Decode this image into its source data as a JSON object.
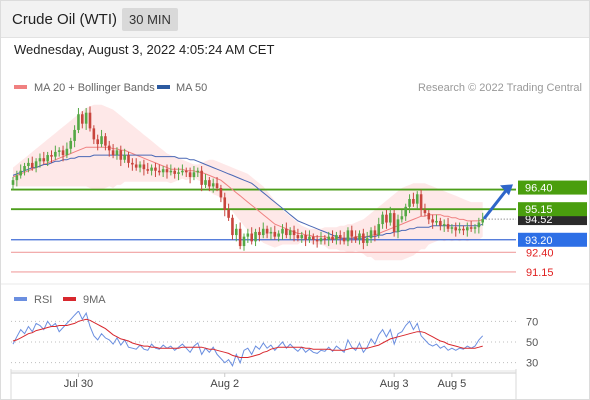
{
  "header": {
    "title": "Crude Oil (WTI)",
    "timeframe_label": "30 MIN",
    "datetime": "Wednesday, August 3, 2022 4:05:24 AM CET"
  },
  "colors": {
    "candle_up": "#55a845",
    "candle_down": "#c8453d",
    "ma20": "#f08080",
    "bollinger_fill": "#fde0e0",
    "ma50": "#4a68b5",
    "resistance": "#4d9e1b",
    "support_blue": "#3f6bd6",
    "support_red": "#f0a0a0",
    "rsi": "#6b8fe0",
    "rsi_ma": "#d8282e",
    "arrow": "#2f66c9"
  },
  "chart_data": [
    {
      "type": "candlestick",
      "title": "",
      "legend": [
        {
          "name": "MA 20 + Bollinger Bands",
          "color": "#f08080"
        },
        {
          "name": "MA 50",
          "color": "#2c5aa0"
        }
      ],
      "copyright": "Research © 2022 Trading Central",
      "ylim": [
        90.7,
        102.3
      ],
      "x_ticks": [
        {
          "label": "Jul 30",
          "index": 17
        },
        {
          "label": "Aug 2",
          "index": 55
        },
        {
          "label": "Aug 3",
          "index": 99
        },
        {
          "label": "Aug 5",
          "index": 114
        }
      ],
      "last_price": 94.52,
      "levels": [
        {
          "value": 96.4,
          "label": "96.40",
          "kind": "resistance",
          "style": "badge-green"
        },
        {
          "value": 95.15,
          "label": "95.15",
          "kind": "resistance",
          "style": "badge-green"
        },
        {
          "value": 93.2,
          "label": "93.20",
          "kind": "support",
          "style": "badge-blue"
        },
        {
          "value": 92.4,
          "label": "92.40",
          "kind": "support",
          "style": "text-red"
        },
        {
          "value": 91.15,
          "label": "91.15",
          "kind": "support",
          "style": "text-red"
        }
      ],
      "forecast_arrow": {
        "from": 94.6,
        "to": 96.35
      },
      "close": [
        97.0,
        97.3,
        97.6,
        97.9,
        98.1,
        97.8,
        98.2,
        98.4,
        98.2,
        98.6,
        98.5,
        98.8,
        98.9,
        98.6,
        99.0,
        99.5,
        100.2,
        101.2,
        100.6,
        101.3,
        100.3,
        99.6,
        99.3,
        99.8,
        99.2,
        98.9,
        98.6,
        98.9,
        98.3,
        98.6,
        98.1,
        98.0,
        97.8,
        98.0,
        97.7,
        97.6,
        97.8,
        97.6,
        97.5,
        97.7,
        97.5,
        97.6,
        97.4,
        97.5,
        97.6,
        97.5,
        97.2,
        97.5,
        97.6,
        96.7,
        97.0,
        96.6,
        96.8,
        96.5,
        95.9,
        95.1,
        94.6,
        93.5,
        93.9,
        92.8,
        93.4,
        93.6,
        93.1,
        93.7,
        93.5,
        93.9,
        93.6,
        93.7,
        93.4,
        93.6,
        93.9,
        93.5,
        93.8,
        93.5,
        93.3,
        93.5,
        93.2,
        93.4,
        93.2,
        93.1,
        93.3,
        93.2,
        93.4,
        93.2,
        93.5,
        93.3,
        93.1,
        93.8,
        93.4,
        93.2,
        93.6,
        93.0,
        93.3,
        93.8,
        93.5,
        94.2,
        94.8,
        94.3,
        94.9,
        93.7,
        94.5,
        94.7,
        95.3,
        95.8,
        95.5,
        96.1,
        95.1,
        94.9,
        94.5,
        94.3,
        94.4,
        94.1,
        94.2,
        93.9,
        94.0,
        93.8,
        93.9,
        93.8,
        94.0,
        93.9,
        94.0,
        94.3,
        94.52
      ],
      "ma20": [
        97.2,
        97.3,
        97.4,
        97.5,
        97.6,
        97.7,
        97.8,
        97.9,
        98.0,
        98.1,
        98.2,
        98.3,
        98.4,
        98.5,
        98.6,
        98.7,
        98.8,
        98.9,
        99.0,
        99.1,
        99.1,
        99.1,
        99.1,
        99.1,
        99.1,
        99.1,
        99.0,
        99.0,
        98.9,
        98.9,
        98.8,
        98.7,
        98.6,
        98.5,
        98.4,
        98.3,
        98.2,
        98.1,
        98.0,
        97.9,
        97.8,
        97.7,
        97.7,
        97.7,
        97.7,
        97.6,
        97.6,
        97.6,
        97.5,
        97.5,
        97.4,
        97.3,
        97.2,
        97.1,
        97.0,
        96.8,
        96.6,
        96.4,
        96.2,
        96.0,
        95.8,
        95.6,
        95.4,
        95.2,
        95.0,
        94.8,
        94.6,
        94.4,
        94.2,
        94.1,
        94.0,
        93.9,
        93.8,
        93.7,
        93.6,
        93.6,
        93.5,
        93.5,
        93.4,
        93.4,
        93.4,
        93.4,
        93.3,
        93.3,
        93.3,
        93.3,
        93.3,
        93.3,
        93.3,
        93.4,
        93.4,
        93.4,
        93.4,
        93.5,
        93.5,
        93.6,
        93.7,
        93.8,
        93.9,
        94.0,
        94.1,
        94.2,
        94.3,
        94.4,
        94.5,
        94.6,
        94.7,
        94.7,
        94.8,
        94.8,
        94.8,
        94.8,
        94.7,
        94.7,
        94.6,
        94.6,
        94.5,
        94.5,
        94.4,
        94.4,
        94.4,
        94.4,
        94.5
      ],
      "bb_upper": [
        97.8,
        98.0,
        98.2,
        98.4,
        98.6,
        98.8,
        99.0,
        99.2,
        99.4,
        99.6,
        99.8,
        100.0,
        100.2,
        100.4,
        100.6,
        100.8,
        101.0,
        101.2,
        101.4,
        101.6,
        101.7,
        101.8,
        101.8,
        101.8,
        101.7,
        101.6,
        101.5,
        101.3,
        101.1,
        100.9,
        100.7,
        100.5,
        100.3,
        100.1,
        99.9,
        99.7,
        99.5,
        99.3,
        99.1,
        98.9,
        98.7,
        98.6,
        98.5,
        98.4,
        98.3,
        98.2,
        98.1,
        98.0,
        98.0,
        98.1,
        98.2,
        98.3,
        98.3,
        98.2,
        98.1,
        98.0,
        97.9,
        97.8,
        97.7,
        97.6,
        97.5,
        97.4,
        97.2,
        97.0,
        96.8,
        96.6,
        96.3,
        96.0,
        95.7,
        95.4,
        95.1,
        94.9,
        94.7,
        94.5,
        94.3,
        94.1,
        94.0,
        93.9,
        93.9,
        93.9,
        93.9,
        94.0,
        94.0,
        94.0,
        94.0,
        94.1,
        94.1,
        94.2,
        94.2,
        94.3,
        94.4,
        94.5,
        94.7,
        94.9,
        95.1,
        95.3,
        95.5,
        95.7,
        95.9,
        96.1,
        96.3,
        96.5,
        96.6,
        96.7,
        96.8,
        96.8,
        96.8,
        96.8,
        96.7,
        96.6,
        96.5,
        96.4,
        96.3,
        96.2,
        96.1,
        96.0,
        95.9,
        95.8,
        95.7,
        95.6,
        95.6,
        95.6,
        95.6
      ],
      "bb_lower": [
        96.6,
        96.6,
        96.6,
        96.6,
        96.6,
        96.6,
        96.6,
        96.6,
        96.6,
        96.6,
        96.6,
        96.6,
        96.6,
        96.6,
        96.6,
        96.6,
        96.6,
        96.6,
        96.6,
        96.6,
        96.5,
        96.4,
        96.4,
        96.4,
        96.5,
        96.6,
        96.5,
        96.7,
        96.7,
        96.9,
        96.9,
        96.9,
        96.9,
        96.9,
        96.9,
        96.9,
        96.9,
        96.9,
        96.9,
        96.9,
        96.9,
        96.8,
        96.9,
        97.0,
        97.1,
        97.0,
        97.1,
        97.2,
        97.0,
        96.9,
        96.6,
        96.3,
        96.1,
        96.0,
        95.9,
        95.6,
        95.3,
        95.0,
        94.7,
        94.4,
        94.1,
        93.8,
        93.6,
        93.4,
        93.2,
        93.0,
        92.9,
        92.8,
        92.7,
        92.8,
        92.9,
        92.9,
        92.9,
        92.9,
        92.9,
        93.1,
        93.0,
        93.1,
        92.9,
        92.9,
        92.9,
        92.8,
        92.6,
        92.6,
        92.6,
        92.5,
        92.5,
        92.4,
        92.4,
        92.5,
        92.4,
        92.3,
        92.1,
        92.1,
        91.9,
        91.9,
        91.9,
        91.9,
        91.9,
        91.9,
        91.9,
        91.9,
        92.0,
        92.1,
        92.2,
        92.4,
        92.6,
        92.6,
        92.9,
        93.0,
        93.1,
        93.2,
        93.1,
        93.2,
        93.1,
        93.2,
        93.1,
        93.2,
        93.1,
        93.2,
        93.2,
        93.2,
        93.4
      ],
      "ma50": [
        97.3,
        97.4,
        97.5,
        97.6,
        97.7,
        97.8,
        97.8,
        97.9,
        98.0,
        98.0,
        98.1,
        98.2,
        98.2,
        98.3,
        98.3,
        98.4,
        98.4,
        98.5,
        98.5,
        98.5,
        98.5,
        98.6,
        98.6,
        98.6,
        98.6,
        98.6,
        98.6,
        98.6,
        98.6,
        98.6,
        98.6,
        98.6,
        98.6,
        98.6,
        98.6,
        98.6,
        98.6,
        98.5,
        98.5,
        98.5,
        98.5,
        98.5,
        98.5,
        98.4,
        98.4,
        98.4,
        98.3,
        98.3,
        98.2,
        98.1,
        98.0,
        97.9,
        97.8,
        97.7,
        97.6,
        97.5,
        97.4,
        97.3,
        97.2,
        97.1,
        97.0,
        96.9,
        96.8,
        96.6,
        96.4,
        96.2,
        96.0,
        95.8,
        95.6,
        95.4,
        95.2,
        95.0,
        94.8,
        94.6,
        94.4,
        94.3,
        94.2,
        94.1,
        94.0,
        93.9,
        93.8,
        93.7,
        93.6,
        93.5,
        93.4,
        93.3,
        93.3,
        93.3,
        93.3,
        93.3,
        93.3,
        93.3,
        93.4,
        93.4,
        93.4,
        93.5,
        93.5,
        93.6,
        93.6,
        93.7,
        93.7,
        93.8,
        93.8,
        93.9,
        93.9,
        94.0,
        94.0,
        94.0,
        94.0,
        94.1,
        94.1,
        94.1,
        94.1,
        94.1,
        94.1,
        94.1,
        94.1,
        94.1,
        94.1,
        94.1,
        94.1,
        94.1,
        94.2
      ]
    },
    {
      "type": "line",
      "title": "",
      "legend": [
        {
          "name": "RSI",
          "color": "#6b8fe0"
        },
        {
          "name": "9MA",
          "color": "#d8282e"
        }
      ],
      "ylim": [
        20,
        80
      ],
      "y_ticks": [
        70,
        50,
        30
      ],
      "series": [
        {
          "name": "RSI",
          "values": [
            48,
            55,
            62,
            58,
            65,
            60,
            68,
            66,
            62,
            70,
            65,
            68,
            60,
            64,
            68,
            72,
            76,
            80,
            72,
            78,
            65,
            56,
            52,
            58,
            54,
            52,
            48,
            54,
            47,
            52,
            45,
            44,
            43,
            47,
            43,
            42,
            48,
            44,
            43,
            47,
            44,
            46,
            42,
            45,
            48,
            44,
            40,
            46,
            49,
            38,
            44,
            40,
            45,
            38,
            34,
            30,
            33,
            27,
            38,
            30,
            42,
            44,
            38,
            46,
            43,
            49,
            44,
            47,
            42,
            46,
            50,
            44,
            48,
            44,
            41,
            45,
            40,
            43,
            40,
            39,
            42,
            41,
            45,
            41,
            46,
            43,
            40,
            52,
            45,
            42,
            49,
            40,
            45,
            53,
            48,
            57,
            62,
            55,
            62,
            48,
            58,
            60,
            66,
            70,
            62,
            68,
            56,
            52,
            48,
            46,
            48,
            44,
            46,
            42,
            44,
            42,
            44,
            43,
            46,
            44,
            46,
            52,
            56
          ]
        },
        {
          "name": "9MA",
          "values": [
            51,
            52,
            54,
            56,
            58,
            59,
            61,
            62,
            63,
            64,
            65,
            65,
            66,
            66,
            66,
            67,
            68,
            70,
            71,
            72,
            71,
            69,
            67,
            65,
            63,
            60,
            57,
            55,
            53,
            52,
            51,
            49,
            48,
            47,
            46,
            46,
            45,
            45,
            44,
            44,
            44,
            44,
            44,
            44,
            45,
            45,
            45,
            45,
            45,
            45,
            44,
            43,
            43,
            42,
            41,
            40,
            39,
            37,
            36,
            35,
            35,
            35,
            36,
            37,
            38,
            40,
            41,
            43,
            44,
            45,
            45,
            45,
            45,
            45,
            45,
            45,
            44,
            44,
            43,
            43,
            43,
            43,
            43,
            42,
            42,
            42,
            42,
            43,
            44,
            44,
            44,
            44,
            44,
            45,
            46,
            47,
            49,
            51,
            53,
            54,
            55,
            56,
            57,
            58,
            59,
            60,
            60,
            59,
            57,
            55,
            53,
            51,
            50,
            48,
            47,
            46,
            45,
            44,
            44,
            44,
            44,
            45,
            46
          ]
        }
      ]
    }
  ]
}
